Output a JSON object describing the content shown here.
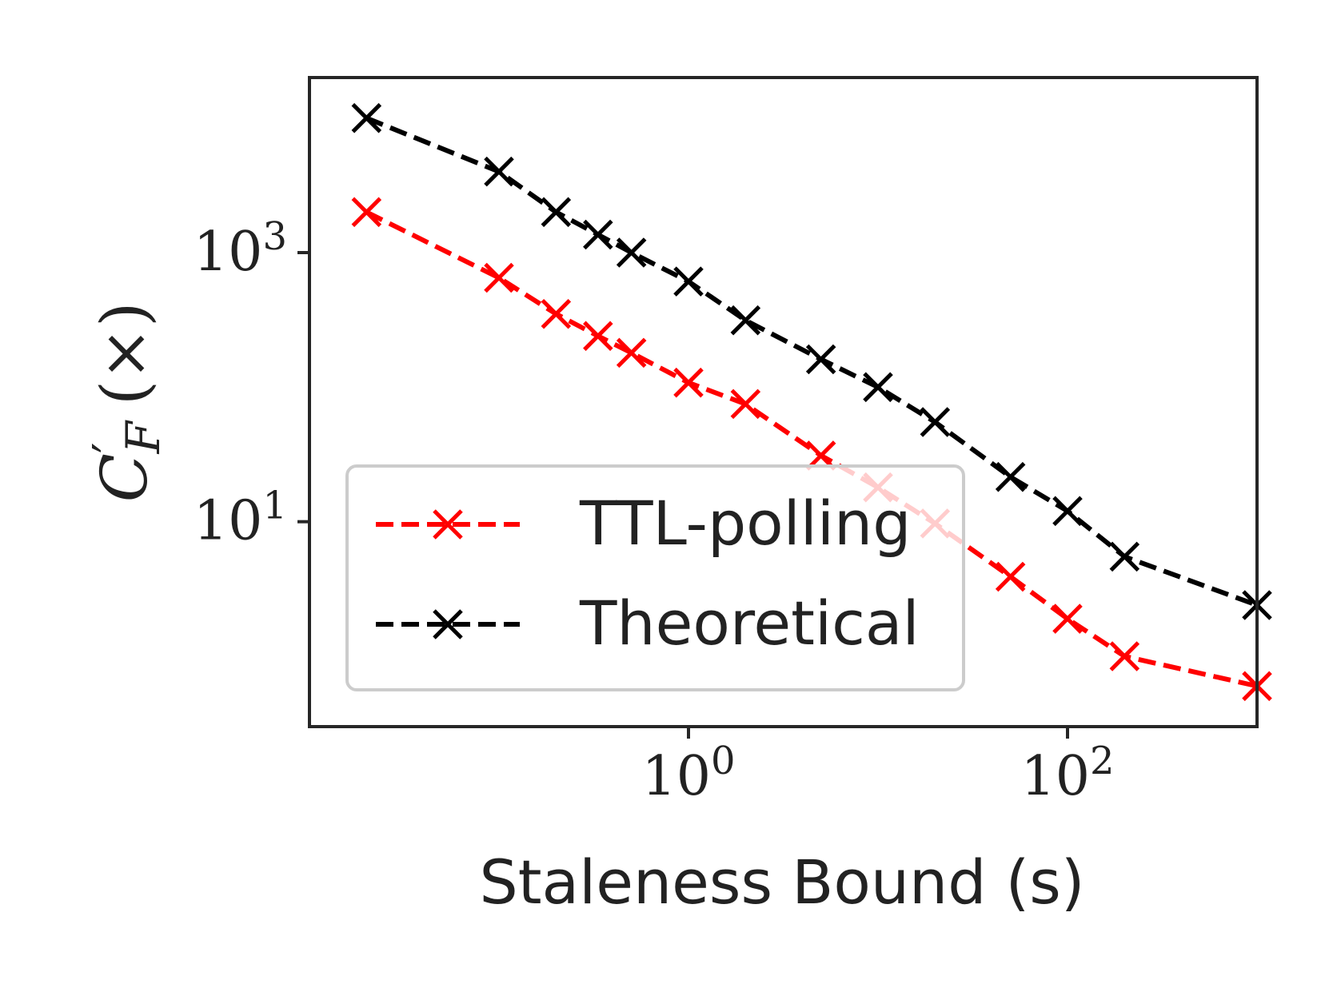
{
  "chart_data": {
    "type": "line",
    "xlabel": "Staleness Bound (s)",
    "ylabel": {
      "base": "C",
      "prime": "′",
      "subscript": "F",
      "suffix": "(×)"
    },
    "xscale": "log",
    "yscale": "log",
    "xlim": [
      0.01,
      1000
    ],
    "ylim": [
      0.3,
      20000
    ],
    "x_ticks": [
      {
        "base": "10",
        "exp": "0",
        "value": 1
      },
      {
        "base": "10",
        "exp": "2",
        "value": 100
      }
    ],
    "y_ticks": [
      {
        "base": "10",
        "exp": "1",
        "value": 10
      },
      {
        "base": "10",
        "exp": "3",
        "value": 1000
      }
    ],
    "grid": false,
    "legend_position": "lower-left",
    "series": [
      {
        "name": "TTL-polling",
        "color": "#ff0000",
        "marker": "x",
        "linestyle": "dashed",
        "x": [
          0.02,
          0.1,
          0.2,
          0.333,
          0.5,
          1,
          2,
          5,
          10,
          20,
          50,
          100,
          200,
          1000
        ],
        "y": [
          2000,
          650,
          350,
          240,
          180,
          108,
          75,
          31,
          18,
          9.7,
          3.9,
          1.9,
          1.0,
          0.6
        ]
      },
      {
        "name": "Theoretical",
        "color": "#000000",
        "marker": "x",
        "linestyle": "dashed",
        "x": [
          0.02,
          0.1,
          0.2,
          0.333,
          0.5,
          1,
          2,
          5,
          10,
          20,
          50,
          100,
          200,
          1000
        ],
        "y": [
          10000,
          4000,
          2000,
          1360,
          1000,
          610,
          314,
          161,
          100,
          55,
          21.5,
          12,
          5.5,
          2.4
        ]
      }
    ]
  }
}
